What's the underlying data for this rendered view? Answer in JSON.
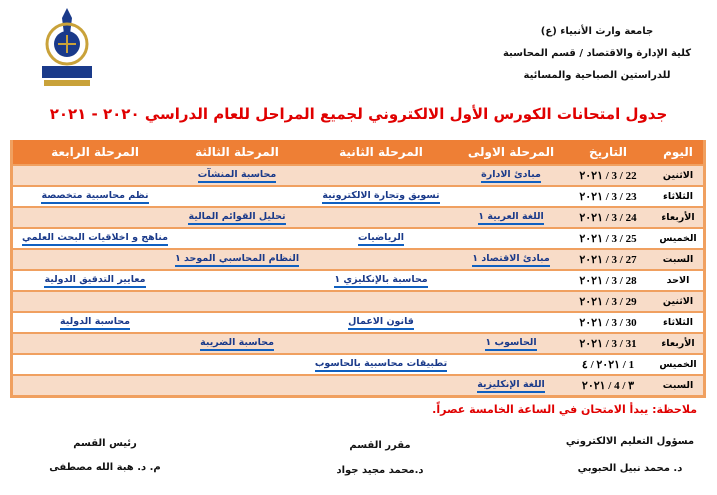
{
  "header": {
    "university": "جامعة وارث الأنبياء (ع)",
    "college": "كلية الإدارة والاقتصاد / قسم المحاسبة",
    "studies": "للدراستين الصباحية والمسائية",
    "logo_text": "وارث الأنبياء"
  },
  "title": "جدول امتحانات الكورس الأول الالكتروني لجميع المراحل للعام الدراسي ٢٠٢٠ - ٢٠٢١",
  "table": {
    "columns": [
      "اليوم",
      "التاريخ",
      "المرحلة الاولى",
      "المرحلة الثانية",
      "المرحلة الثالثة",
      "المرحلة الرابعة"
    ],
    "rows": [
      {
        "day": "الاثنين",
        "date": "٢٠٢١ / 3 / 22",
        "s1": "مبادئ الادارة",
        "s2": "",
        "s3": "محاسبة المنشآت",
        "s4": ""
      },
      {
        "day": "الثلاثاء",
        "date": "٢٠٢١ / 3 / 23",
        "s1": "",
        "s2": "تسويق وتجارة الالكترونية",
        "s3": "",
        "s4": "نظم محاسبية متخصصة"
      },
      {
        "day": "الأربعاء",
        "date": "٢٠٢١ / 3 / 24",
        "s1": "اللغة العربية ١",
        "s2": "",
        "s3": "تحليل القوائم المالية",
        "s4": ""
      },
      {
        "day": "الخميس",
        "date": "٢٠٢١ / 3 / 25",
        "s1": "",
        "s2": "الرياضيات",
        "s3": "",
        "s4": "مناهج و اخلاقيات البحث العلمي"
      },
      {
        "day": "السبت",
        "date": "٢٠٢١ / 3 / 27",
        "s1": "مبادئ الاقتصاد ١",
        "s2": "",
        "s3": "النظام المحاسبي الموحد ١",
        "s4": ""
      },
      {
        "day": "الاحد",
        "date": "٢٠٢١ / 3 / 28",
        "s1": "",
        "s2": "محاسبة بالإنكليزي ١",
        "s3": "",
        "s4": "معايير التدقيق الدولية"
      },
      {
        "day": "الاثنين",
        "date": "٢٠٢١ / 3 / 29",
        "s1": "",
        "s2": "",
        "s3": "",
        "s4": ""
      },
      {
        "day": "الثلاثاء",
        "date": "٢٠٢١ / 3 / 30",
        "s1": "",
        "s2": "قانون الاعمال",
        "s3": "",
        "s4": "محاسبة الدولية"
      },
      {
        "day": "الأربعاء",
        "date": "٢٠٢١ / 3 / 31",
        "s1": "الحاسوب ١",
        "s2": "",
        "s3": "محاسبة الضريبة",
        "s4": ""
      },
      {
        "day": "الخميس",
        "date": "٢٠٢١ / ٤ / 1",
        "s1": "",
        "s2": "تطبيقات محاسبية بالحاسوب",
        "s3": "",
        "s4": ""
      },
      {
        "day": "السبت",
        "date": "٢٠٢١ / 4 / ٣",
        "s1": "اللغة الإنكليزية",
        "s2": "",
        "s3": "",
        "s4": ""
      }
    ]
  },
  "note": "ملاحظة: يبدأ الامتحان في الساعة الخامسة عصراً.",
  "signatures": [
    {
      "role": "مسؤول التعليم الالكتروني",
      "name": "د. محمد نبيل الحبوبي"
    },
    {
      "role": "مقرر القسم",
      "name": "د.محمد مجيد جواد"
    },
    {
      "role": "رئيس القسم",
      "name": "م. د. هبة الله مصطفى"
    }
  ],
  "colors": {
    "header_bg": "#ee7f35",
    "row_peach": "#f8dcc8",
    "border": "#f0a060",
    "title": "#e00000",
    "link": "#1060c0"
  }
}
